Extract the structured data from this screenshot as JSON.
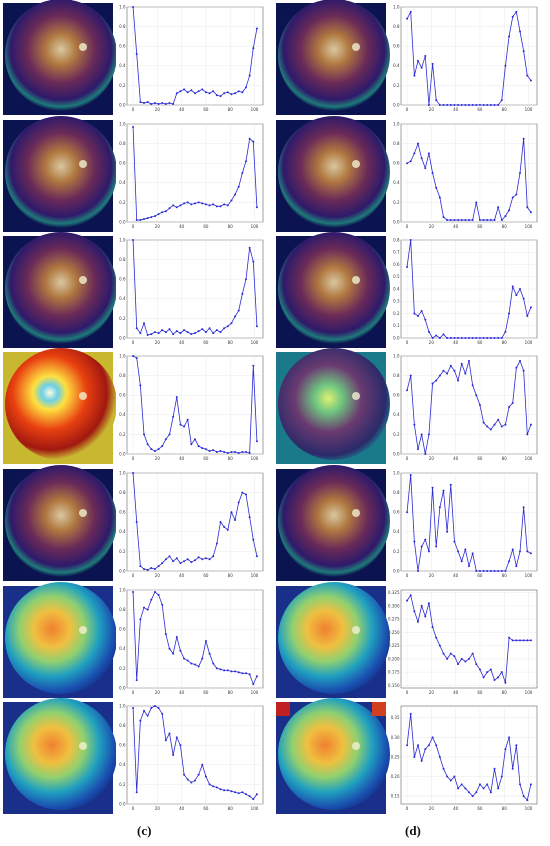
{
  "panel_labels": {
    "c": "(c)",
    "d": "(d)"
  },
  "colors": {
    "line": "#2b2bd6",
    "grid": "#e3e3e3",
    "axis": "#444444"
  },
  "heatmap_styles": [
    "dark-fundus",
    "dark-fundus",
    "dark-fundus",
    "hot-fundus",
    "dark-fundus",
    "blurred-jet",
    "blurred-jet",
    "dark-fundus",
    "dark-fundus",
    "dark-fundus",
    "teal-fundus",
    "dark-fundus",
    "blurred-jet",
    "blurred-jet-corners"
  ],
  "chart_data": [
    {
      "type": "line",
      "panel": "c",
      "row": 1,
      "xticks": [
        "0",
        "20",
        "40",
        "60",
        "80",
        "100"
      ],
      "yticks": [
        "0.0",
        "0.2",
        "0.4",
        "0.6",
        "0.8",
        "1.0"
      ],
      "ylim": [
        0,
        1
      ],
      "x": [
        0,
        3,
        6,
        9,
        12,
        15,
        18,
        21,
        24,
        27,
        30,
        33,
        36,
        39,
        42,
        45,
        48,
        51,
        54,
        57,
        60,
        63,
        66,
        69,
        72,
        75,
        78,
        81,
        84,
        87,
        90,
        93,
        96,
        99,
        102
      ],
      "values": [
        1.0,
        0.52,
        0.03,
        0.02,
        0.03,
        0.01,
        0.02,
        0.01,
        0.02,
        0.01,
        0.02,
        0.01,
        0.12,
        0.14,
        0.16,
        0.13,
        0.15,
        0.12,
        0.14,
        0.16,
        0.13,
        0.12,
        0.14,
        0.1,
        0.09,
        0.12,
        0.13,
        0.11,
        0.12,
        0.14,
        0.13,
        0.18,
        0.3,
        0.58,
        0.78
      ]
    },
    {
      "type": "line",
      "panel": "c",
      "row": 2,
      "xticks": [
        "0",
        "20",
        "40",
        "60",
        "80",
        "100"
      ],
      "yticks": [
        "0.0",
        "0.2",
        "0.4",
        "0.6",
        "0.8",
        "1.0"
      ],
      "ylim": [
        0,
        1
      ],
      "x": [
        0,
        3,
        6,
        9,
        12,
        15,
        18,
        21,
        24,
        27,
        30,
        33,
        36,
        39,
        42,
        45,
        48,
        51,
        54,
        57,
        60,
        63,
        66,
        69,
        72,
        75,
        78,
        81,
        84,
        87,
        90,
        93,
        96,
        99,
        102
      ],
      "values": [
        0.97,
        0.02,
        0.02,
        0.03,
        0.04,
        0.05,
        0.06,
        0.08,
        0.1,
        0.11,
        0.14,
        0.17,
        0.15,
        0.17,
        0.19,
        0.2,
        0.18,
        0.19,
        0.2,
        0.19,
        0.18,
        0.17,
        0.18,
        0.16,
        0.16,
        0.18,
        0.17,
        0.22,
        0.28,
        0.36,
        0.5,
        0.62,
        0.85,
        0.82,
        0.15
      ]
    },
    {
      "type": "line",
      "panel": "c",
      "row": 3,
      "xticks": [
        "0",
        "20",
        "40",
        "60",
        "80",
        "100"
      ],
      "yticks": [
        "0.0",
        "0.2",
        "0.4",
        "0.6",
        "0.8",
        "1.0"
      ],
      "ylim": [
        0,
        1
      ],
      "x": [
        0,
        3,
        6,
        9,
        12,
        15,
        18,
        21,
        24,
        27,
        30,
        33,
        36,
        39,
        42,
        45,
        48,
        51,
        54,
        57,
        60,
        63,
        66,
        69,
        72,
        75,
        78,
        81,
        84,
        87,
        90,
        93,
        96,
        99,
        102
      ],
      "values": [
        1.0,
        0.1,
        0.05,
        0.15,
        0.03,
        0.04,
        0.06,
        0.05,
        0.08,
        0.06,
        0.09,
        0.04,
        0.07,
        0.05,
        0.08,
        0.06,
        0.04,
        0.05,
        0.07,
        0.09,
        0.06,
        0.1,
        0.05,
        0.08,
        0.06,
        0.1,
        0.12,
        0.15,
        0.22,
        0.28,
        0.45,
        0.6,
        0.92,
        0.78,
        0.12
      ]
    },
    {
      "type": "line",
      "panel": "c",
      "row": 4,
      "xticks": [
        "0",
        "20",
        "40",
        "60",
        "80",
        "100"
      ],
      "yticks": [
        "0.0",
        "0.2",
        "0.4",
        "0.6",
        "0.8",
        "1.0"
      ],
      "ylim": [
        0,
        1
      ],
      "x": [
        0,
        3,
        6,
        9,
        12,
        15,
        18,
        21,
        24,
        27,
        30,
        33,
        36,
        39,
        42,
        45,
        48,
        51,
        54,
        57,
        60,
        63,
        66,
        69,
        72,
        75,
        78,
        81,
        84,
        87,
        90,
        93,
        96,
        99,
        102
      ],
      "values": [
        1.0,
        0.98,
        0.7,
        0.2,
        0.1,
        0.05,
        0.03,
        0.05,
        0.08,
        0.15,
        0.2,
        0.38,
        0.58,
        0.3,
        0.28,
        0.35,
        0.1,
        0.15,
        0.08,
        0.06,
        0.05,
        0.03,
        0.04,
        0.02,
        0.03,
        0.02,
        0.01,
        0.02,
        0.02,
        0.01,
        0.02,
        0.02,
        0.01,
        0.9,
        0.13
      ]
    },
    {
      "type": "line",
      "panel": "c",
      "row": 5,
      "xticks": [
        "0",
        "20",
        "40",
        "60",
        "80",
        "100"
      ],
      "yticks": [
        "0.0",
        "0.2",
        "0.4",
        "0.6",
        "0.8",
        "1.0"
      ],
      "ylim": [
        0,
        1
      ],
      "x": [
        0,
        3,
        6,
        9,
        12,
        15,
        18,
        21,
        24,
        27,
        30,
        33,
        36,
        39,
        42,
        45,
        48,
        51,
        54,
        57,
        60,
        63,
        66,
        69,
        72,
        75,
        78,
        81,
        84,
        87,
        90,
        93,
        96,
        99,
        102
      ],
      "values": [
        1.0,
        0.5,
        0.05,
        0.02,
        0.01,
        0.03,
        0.02,
        0.05,
        0.08,
        0.12,
        0.15,
        0.1,
        0.13,
        0.08,
        0.1,
        0.12,
        0.09,
        0.11,
        0.14,
        0.12,
        0.13,
        0.12,
        0.15,
        0.28,
        0.5,
        0.45,
        0.42,
        0.6,
        0.52,
        0.7,
        0.8,
        0.78,
        0.55,
        0.32,
        0.15
      ]
    },
    {
      "type": "line",
      "panel": "c",
      "row": 6,
      "xticks": [
        "0",
        "20",
        "40",
        "60",
        "80",
        "100"
      ],
      "yticks": [
        "0.0",
        "0.2",
        "0.4",
        "0.6",
        "0.8",
        "1.0"
      ],
      "ylim": [
        0,
        1
      ],
      "x": [
        0,
        3,
        6,
        9,
        12,
        15,
        18,
        21,
        24,
        27,
        30,
        33,
        36,
        39,
        42,
        45,
        48,
        51,
        54,
        57,
        60,
        63,
        66,
        69,
        72,
        75,
        78,
        81,
        84,
        87,
        90,
        93,
        96,
        99,
        102
      ],
      "values": [
        0.98,
        0.08,
        0.7,
        0.82,
        0.8,
        0.9,
        0.98,
        0.95,
        0.85,
        0.55,
        0.4,
        0.35,
        0.52,
        0.38,
        0.3,
        0.28,
        0.25,
        0.24,
        0.22,
        0.3,
        0.48,
        0.35,
        0.25,
        0.2,
        0.19,
        0.18,
        0.18,
        0.17,
        0.17,
        0.16,
        0.15,
        0.15,
        0.14,
        0.04,
        0.12
      ]
    },
    {
      "type": "line",
      "panel": "c",
      "row": 7,
      "xticks": [
        "0",
        "20",
        "40",
        "60",
        "80",
        "100"
      ],
      "yticks": [
        "0.0",
        "0.2",
        "0.4",
        "0.6",
        "0.8",
        "1.0"
      ],
      "ylim": [
        0,
        1
      ],
      "x": [
        0,
        3,
        6,
        9,
        12,
        15,
        18,
        21,
        24,
        27,
        30,
        33,
        36,
        39,
        42,
        45,
        48,
        51,
        54,
        57,
        60,
        63,
        66,
        69,
        72,
        75,
        78,
        81,
        84,
        87,
        90,
        93,
        96,
        99,
        102
      ],
      "values": [
        0.98,
        0.12,
        0.85,
        0.95,
        0.9,
        0.98,
        1.0,
        0.98,
        0.92,
        0.65,
        0.72,
        0.5,
        0.68,
        0.6,
        0.3,
        0.25,
        0.22,
        0.24,
        0.3,
        0.4,
        0.28,
        0.2,
        0.18,
        0.17,
        0.15,
        0.14,
        0.14,
        0.13,
        0.12,
        0.11,
        0.12,
        0.1,
        0.08,
        0.05,
        0.1
      ]
    },
    {
      "type": "line",
      "panel": "d",
      "row": 1,
      "xticks": [
        "0",
        "20",
        "40",
        "60",
        "80",
        "100"
      ],
      "yticks": [
        "0.0",
        "0.2",
        "0.4",
        "0.6",
        "0.8",
        "1.0"
      ],
      "ylim": [
        0,
        1
      ],
      "x": [
        0,
        3,
        6,
        9,
        12,
        15,
        18,
        21,
        24,
        27,
        30,
        33,
        36,
        39,
        42,
        45,
        48,
        51,
        54,
        57,
        60,
        63,
        66,
        69,
        72,
        75,
        78,
        81,
        84,
        87,
        90,
        93,
        96,
        99,
        102
      ],
      "values": [
        0.88,
        0.95,
        0.3,
        0.45,
        0.38,
        0.5,
        0.0,
        0.42,
        0.05,
        0.0,
        0.0,
        0.0,
        0.0,
        0.0,
        0.0,
        0.0,
        0.0,
        0.0,
        0.0,
        0.0,
        0.0,
        0.0,
        0.0,
        0.0,
        0.0,
        0.0,
        0.05,
        0.4,
        0.7,
        0.9,
        0.95,
        0.75,
        0.55,
        0.3,
        0.25
      ]
    },
    {
      "type": "line",
      "panel": "d",
      "row": 2,
      "xticks": [
        "0",
        "20",
        "40",
        "60",
        "80",
        "100"
      ],
      "yticks": [
        "0.0",
        "0.2",
        "0.4",
        "0.6",
        "0.8",
        "1.0"
      ],
      "ylim": [
        0,
        1
      ],
      "x": [
        0,
        3,
        6,
        9,
        12,
        15,
        18,
        21,
        24,
        27,
        30,
        33,
        36,
        39,
        42,
        45,
        48,
        51,
        54,
        57,
        60,
        63,
        66,
        69,
        72,
        75,
        78,
        81,
        84,
        87,
        90,
        93,
        96,
        99,
        102
      ],
      "values": [
        0.6,
        0.62,
        0.7,
        0.8,
        0.65,
        0.55,
        0.7,
        0.5,
        0.35,
        0.25,
        0.05,
        0.02,
        0.02,
        0.02,
        0.02,
        0.02,
        0.02,
        0.02,
        0.02,
        0.2,
        0.02,
        0.02,
        0.02,
        0.02,
        0.02,
        0.15,
        0.02,
        0.06,
        0.12,
        0.25,
        0.28,
        0.5,
        0.85,
        0.15,
        0.1
      ]
    },
    {
      "type": "line",
      "panel": "d",
      "row": 3,
      "xticks": [
        "0",
        "20",
        "40",
        "60",
        "80",
        "100"
      ],
      "yticks": [
        "0.0",
        "0.1",
        "0.2",
        "0.3",
        "0.4",
        "0.5",
        "0.6",
        "0.7",
        "0.8"
      ],
      "ylim": [
        0,
        0.8
      ],
      "x": [
        0,
        3,
        6,
        9,
        12,
        15,
        18,
        21,
        24,
        27,
        30,
        33,
        36,
        39,
        42,
        45,
        48,
        51,
        54,
        57,
        60,
        63,
        66,
        69,
        72,
        75,
        78,
        81,
        84,
        87,
        90,
        93,
        96,
        99,
        102
      ],
      "values": [
        0.58,
        0.8,
        0.2,
        0.18,
        0.22,
        0.15,
        0.05,
        0.0,
        0.02,
        0.0,
        0.03,
        0.0,
        0.0,
        0.0,
        0.0,
        0.0,
        0.0,
        0.0,
        0.0,
        0.0,
        0.0,
        0.0,
        0.0,
        0.0,
        0.0,
        0.0,
        0.0,
        0.05,
        0.2,
        0.42,
        0.35,
        0.4,
        0.32,
        0.18,
        0.25
      ]
    },
    {
      "type": "line",
      "panel": "d",
      "row": 4,
      "xticks": [
        "0",
        "20",
        "40",
        "60",
        "80",
        "100"
      ],
      "yticks": [
        "0.0",
        "0.2",
        "0.4",
        "0.6",
        "0.8",
        "1.0"
      ],
      "ylim": [
        0,
        1
      ],
      "x": [
        0,
        3,
        6,
        9,
        12,
        15,
        18,
        21,
        24,
        27,
        30,
        33,
        36,
        39,
        42,
        45,
        48,
        51,
        54,
        57,
        60,
        63,
        66,
        69,
        72,
        75,
        78,
        81,
        84,
        87,
        90,
        93,
        96,
        99,
        102
      ],
      "values": [
        0.65,
        0.8,
        0.3,
        0.05,
        0.2,
        0.0,
        0.2,
        0.72,
        0.75,
        0.8,
        0.85,
        0.82,
        0.9,
        0.85,
        0.75,
        0.92,
        0.82,
        0.95,
        0.7,
        0.6,
        0.5,
        0.32,
        0.28,
        0.25,
        0.3,
        0.35,
        0.28,
        0.3,
        0.48,
        0.52,
        0.88,
        0.95,
        0.85,
        0.2,
        0.3
      ]
    },
    {
      "type": "line",
      "panel": "d",
      "row": 5,
      "xticks": [
        "0",
        "20",
        "40",
        "60",
        "80",
        "100"
      ],
      "yticks": [
        "0.0",
        "0.2",
        "0.4",
        "0.6",
        "0.8",
        "1.0"
      ],
      "ylim": [
        0,
        1
      ],
      "x": [
        0,
        3,
        6,
        9,
        12,
        15,
        18,
        21,
        24,
        27,
        30,
        33,
        36,
        39,
        42,
        45,
        48,
        51,
        54,
        57,
        60,
        63,
        66,
        69,
        72,
        75,
        78,
        81,
        84,
        87,
        90,
        93,
        96,
        99,
        102
      ],
      "values": [
        0.6,
        0.98,
        0.3,
        0.0,
        0.25,
        0.32,
        0.2,
        0.85,
        0.25,
        0.65,
        0.82,
        0.4,
        0.88,
        0.3,
        0.2,
        0.1,
        0.22,
        0.05,
        0.18,
        0.0,
        0.0,
        0.0,
        0.0,
        0.0,
        0.0,
        0.0,
        0.0,
        0.0,
        0.1,
        0.22,
        0.05,
        0.2,
        0.65,
        0.2,
        0.18
      ]
    },
    {
      "type": "line",
      "panel": "d",
      "row": 6,
      "xticks": [
        "0",
        "20",
        "40",
        "60",
        "80",
        "100"
      ],
      "yticks": [
        "0.150",
        "0.175",
        "0.200",
        "0.225",
        "0.250",
        "0.275",
        "0.300",
        "0.325"
      ],
      "ylim": [
        0.145,
        0.33
      ],
      "x": [
        0,
        3,
        6,
        9,
        12,
        15,
        18,
        21,
        24,
        27,
        30,
        33,
        36,
        39,
        42,
        45,
        48,
        51,
        54,
        57,
        60,
        63,
        66,
        69,
        72,
        75,
        78,
        81,
        84,
        87,
        90,
        93,
        96,
        99,
        102
      ],
      "values": [
        0.31,
        0.32,
        0.29,
        0.27,
        0.3,
        0.28,
        0.305,
        0.26,
        0.24,
        0.225,
        0.21,
        0.2,
        0.21,
        0.205,
        0.19,
        0.2,
        0.195,
        0.2,
        0.21,
        0.19,
        0.18,
        0.165,
        0.175,
        0.18,
        0.16,
        0.165,
        0.175,
        0.155,
        0.24,
        0.235,
        0.235,
        0.235,
        0.235,
        0.235,
        0.235
      ]
    },
    {
      "type": "line",
      "panel": "d",
      "row": 7,
      "xticks": [
        "0",
        "20",
        "40",
        "60",
        "80",
        "100"
      ],
      "yticks": [
        "0.15",
        "0.20",
        "0.25",
        "0.30",
        "0.35"
      ],
      "ylim": [
        0.13,
        0.38
      ],
      "x": [
        0,
        3,
        6,
        9,
        12,
        15,
        18,
        21,
        24,
        27,
        30,
        33,
        36,
        39,
        42,
        45,
        48,
        51,
        54,
        57,
        60,
        63,
        66,
        69,
        72,
        75,
        78,
        81,
        84,
        87,
        90,
        93,
        96,
        99,
        102
      ],
      "values": [
        0.28,
        0.36,
        0.25,
        0.28,
        0.24,
        0.27,
        0.28,
        0.3,
        0.28,
        0.25,
        0.22,
        0.2,
        0.19,
        0.2,
        0.17,
        0.18,
        0.17,
        0.16,
        0.15,
        0.16,
        0.18,
        0.17,
        0.18,
        0.16,
        0.22,
        0.17,
        0.2,
        0.27,
        0.3,
        0.22,
        0.28,
        0.18,
        0.15,
        0.14,
        0.18
      ]
    }
  ]
}
